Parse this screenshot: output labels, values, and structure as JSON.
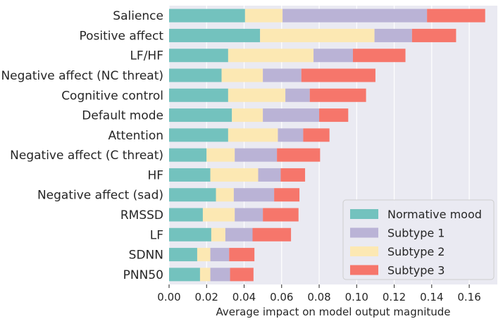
{
  "chart_data": {
    "type": "bar",
    "orientation": "horizontal",
    "stacked": true,
    "title": "",
    "xlabel": "Average impact on model output magnitude",
    "ylabel": "",
    "xlim": [
      0,
      0.175
    ],
    "xticks": [
      0.0,
      0.02,
      0.04,
      0.06,
      0.08,
      0.1,
      0.12,
      0.14,
      0.16
    ],
    "xtick_labels": [
      "0.00",
      "0.02",
      "0.04",
      "0.06",
      "0.08",
      "0.10",
      "0.12",
      "0.14",
      "0.16"
    ],
    "grid": true,
    "legend_position": "bottom-right",
    "categories": [
      "Salience",
      "Positive affect",
      "LF/HF",
      "Negative affect (NC threat)",
      "Cognitive control",
      "Default mode",
      "Attention",
      "Negative affect (C threat)",
      "HF",
      "Negative affect (sad)",
      "RMSSD",
      "LF",
      "SDNN",
      "PNN50"
    ],
    "stack_order": [
      "Normative mood",
      "Subtype 2",
      "Subtype 1",
      "Subtype 3"
    ],
    "series": [
      {
        "name": "Normative mood",
        "color": "#73c2be",
        "values": [
          0.0405,
          0.0485,
          0.0315,
          0.028,
          0.0315,
          0.0335,
          0.0315,
          0.02,
          0.022,
          0.025,
          0.018,
          0.0225,
          0.015,
          0.0165
        ]
      },
      {
        "name": "Subtype 1",
        "color": "#bab3d6",
        "values": [
          0.077,
          0.02,
          0.021,
          0.0205,
          0.013,
          0.03,
          0.0135,
          0.0225,
          0.012,
          0.0215,
          0.015,
          0.0145,
          0.01,
          0.0105
        ]
      },
      {
        "name": "Subtype 2",
        "color": "#fce8b3",
        "values": [
          0.02,
          0.061,
          0.0455,
          0.022,
          0.0305,
          0.0165,
          0.0265,
          0.015,
          0.0255,
          0.0095,
          0.017,
          0.0075,
          0.007,
          0.0055
        ]
      },
      {
        "name": "Subtype 3",
        "color": "#f6766b",
        "values": [
          0.031,
          0.0235,
          0.028,
          0.0395,
          0.03,
          0.0155,
          0.014,
          0.023,
          0.013,
          0.0135,
          0.019,
          0.0205,
          0.0135,
          0.0125
        ]
      }
    ],
    "legend": [
      {
        "label": "Normative mood",
        "color": "#73c2be"
      },
      {
        "label": "Subtype 1",
        "color": "#bab3d6"
      },
      {
        "label": "Subtype 2",
        "color": "#fce8b3"
      },
      {
        "label": "Subtype 3",
        "color": "#f6766b"
      }
    ]
  }
}
